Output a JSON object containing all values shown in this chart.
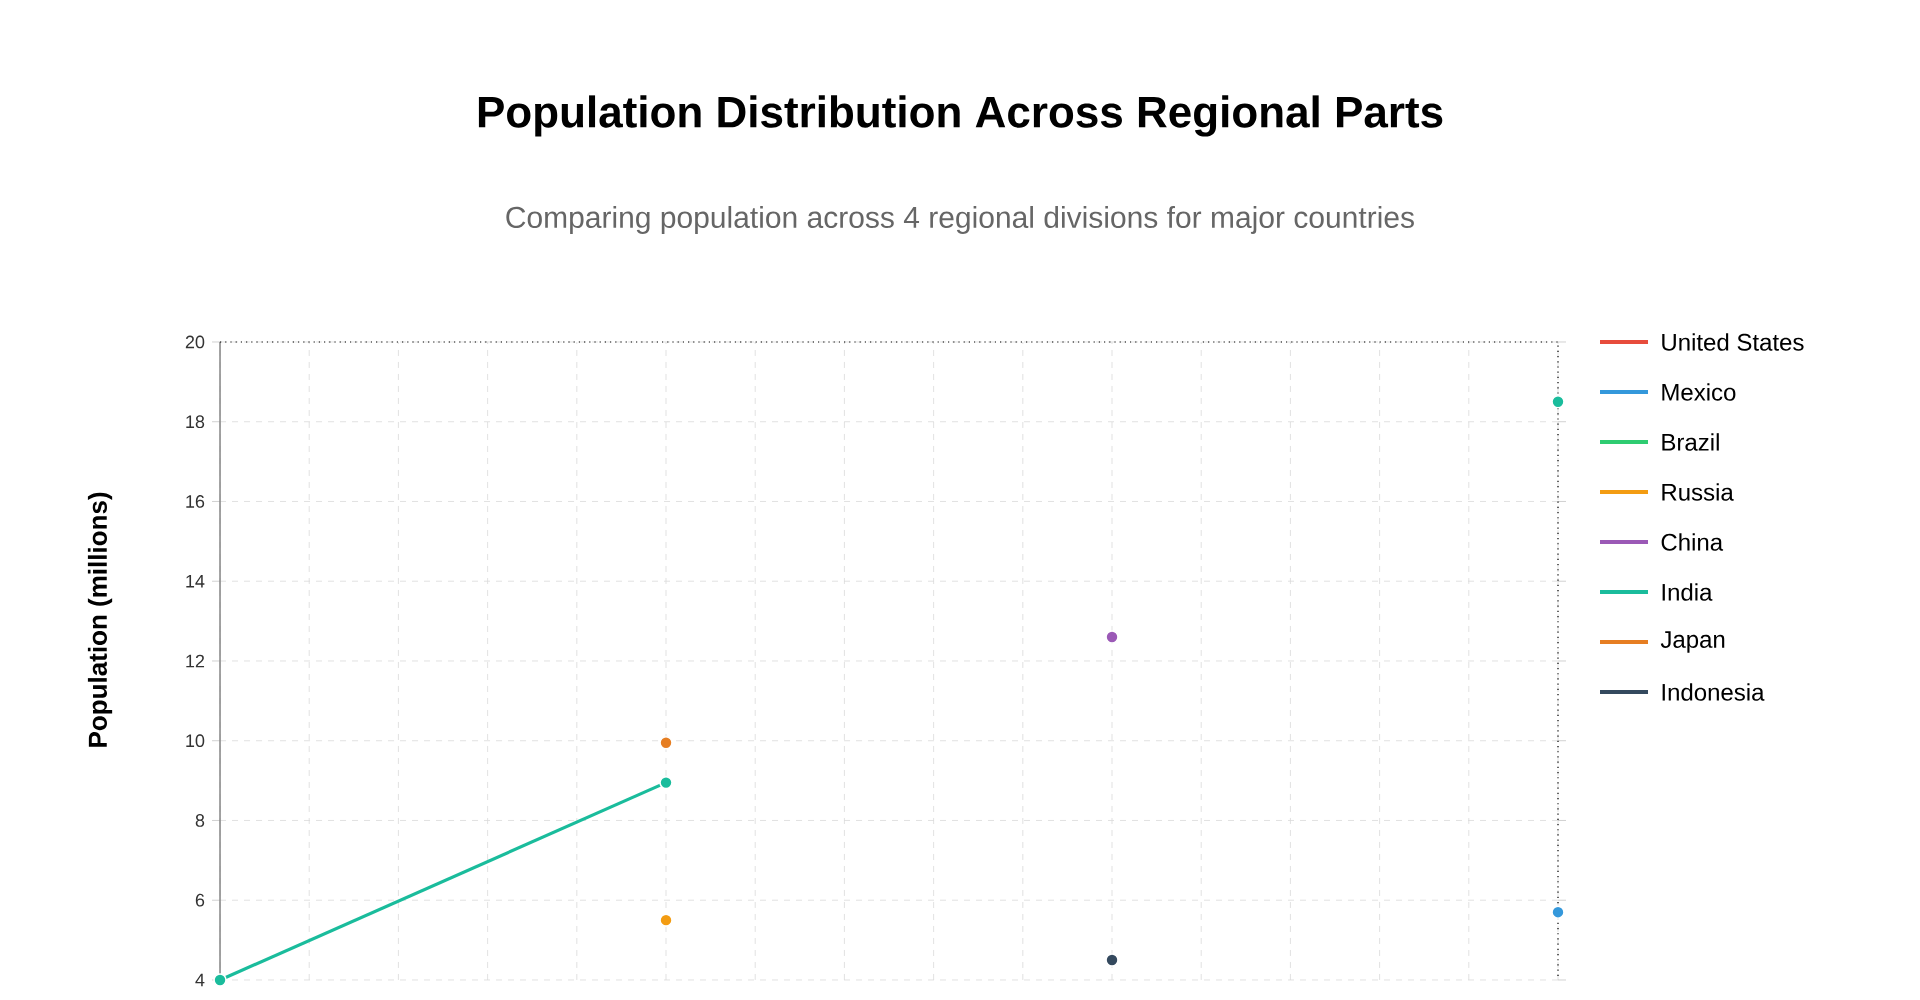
{
  "chart_data": {
    "type": "line",
    "title": "Population Distribution Across Regional Parts",
    "subtitle": "Comparing population across 4 regional divisions for major countries",
    "ylabel": "Population (millions)",
    "categories": [
      null,
      null,
      null,
      null
    ],
    "ylim": [
      4,
      20
    ],
    "yticks": [
      4,
      6,
      8,
      10,
      12,
      14,
      16,
      18,
      20
    ],
    "grid": true,
    "legend": "right",
    "marker": "circle",
    "line_style": "solid",
    "tick_labels": "y",
    "series": [
      {
        "name": "United States",
        "color": "#e74c3c",
        "values": [
          null,
          null,
          null,
          null
        ]
      },
      {
        "name": "Mexico",
        "color": "#3498db",
        "values": [
          null,
          null,
          null,
          5.7
        ]
      },
      {
        "name": "Brazil",
        "color": "#2ecc71",
        "values": [
          null,
          null,
          null,
          null
        ]
      },
      {
        "name": "Russia",
        "color": "#f39c12",
        "values": [
          null,
          5.5,
          null,
          null
        ]
      },
      {
        "name": "China",
        "color": "#9b59b6",
        "values": [
          null,
          null,
          12.6,
          null
        ]
      },
      {
        "name": "India",
        "color": "#1abc9c",
        "values": [
          4,
          8.95,
          null,
          18.5
        ]
      },
      {
        "name": "Japan",
        "color": "#e67e22",
        "values": [
          null,
          9.95,
          null,
          null
        ]
      },
      {
        "name": "Indonesia",
        "color": "#34495e",
        "values": [
          null,
          null,
          4.5,
          null
        ]
      }
    ]
  }
}
